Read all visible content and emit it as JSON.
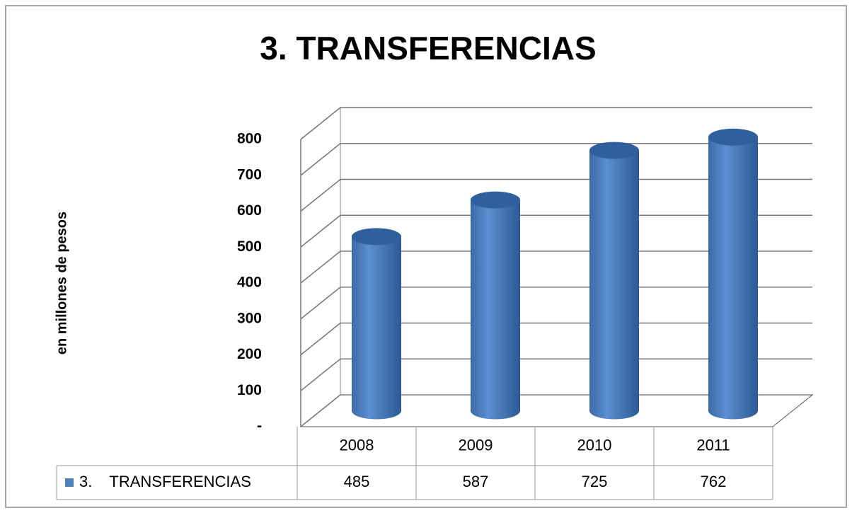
{
  "chart_data": {
    "type": "bar3d",
    "title": "3.    TRANSFERENCIAS",
    "y_label": "en millones de pesos",
    "categories": [
      "2008",
      "2009",
      "2010",
      "2011"
    ],
    "series": [
      {
        "name": "3.    TRANSFERENCIAS",
        "color": "#4f81bd",
        "values": [
          485,
          587,
          725,
          762
        ]
      }
    ],
    "ylim": [
      0,
      800
    ],
    "yticks": [
      {
        "value": 0,
        "label": "-"
      },
      100,
      200,
      300,
      400,
      500,
      600,
      700,
      800
    ],
    "grid": true
  }
}
